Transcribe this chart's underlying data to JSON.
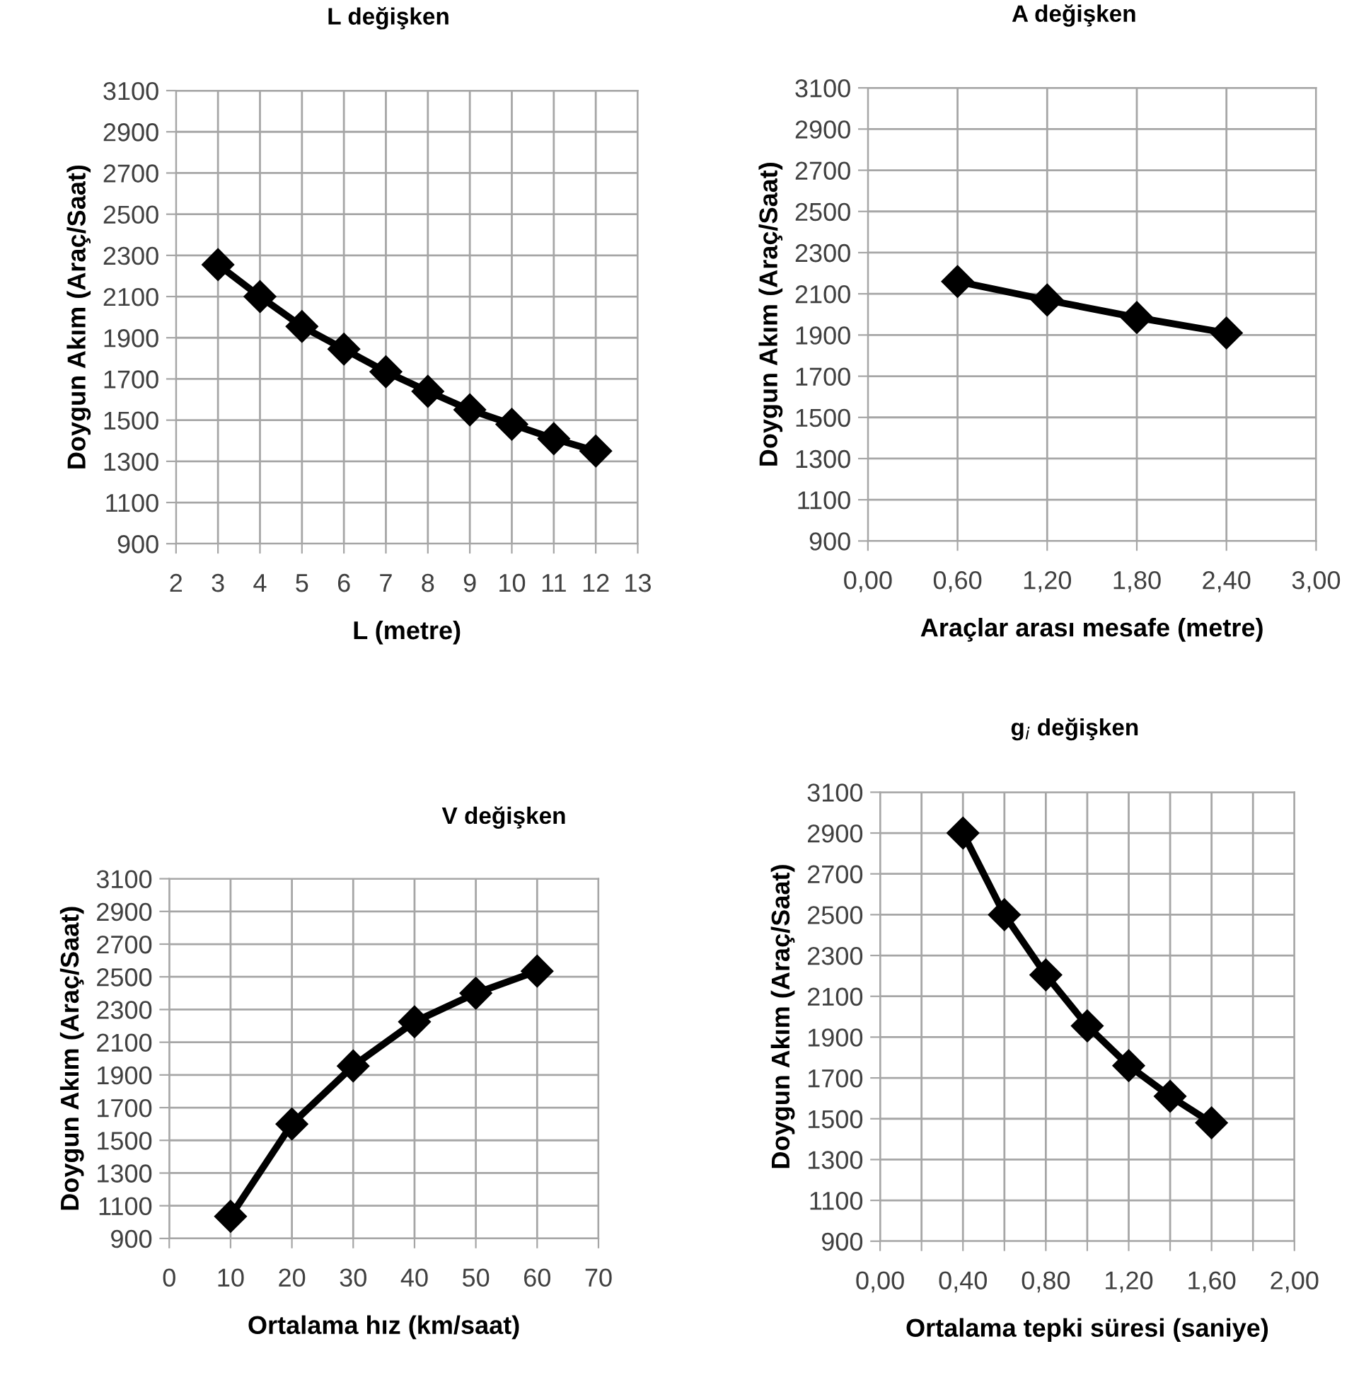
{
  "chart_data": [
    {
      "type": "line",
      "title": "L değişken",
      "xlabel": "L (metre)",
      "ylabel": "Doygun Akım (Araç/Saat)",
      "x": [
        3,
        4,
        5,
        6,
        7,
        8,
        9,
        10,
        11,
        12
      ],
      "series": [
        {
          "color": "#000000",
          "values": [
            2255,
            2100,
            1955,
            1845,
            1735,
            1640,
            1550,
            1480,
            1410,
            1350
          ]
        }
      ],
      "xlim": [
        2,
        13
      ],
      "xticks": [
        2,
        3,
        4,
        5,
        6,
        7,
        8,
        9,
        10,
        11,
        12,
        13
      ],
      "ylim": [
        900,
        3100
      ],
      "yticks": [
        900,
        1100,
        1300,
        1500,
        1700,
        1900,
        2100,
        2300,
        2500,
        2700,
        2900,
        3100
      ],
      "grid": true,
      "marker": "diamond",
      "line_style": "solid"
    },
    {
      "type": "line",
      "title": "A değişken",
      "xlabel": "Araçlar arası mesafe (metre)",
      "ylabel": "Doygun Akım (Araç/Saat)",
      "x": [
        0.6,
        1.2,
        1.8,
        2.4
      ],
      "series": [
        {
          "color": "#000000",
          "values": [
            2160,
            2070,
            1985,
            1910
          ]
        }
      ],
      "xlim": [
        0,
        3
      ],
      "xticks": [
        {
          "value": 0,
          "label": "0,00"
        },
        {
          "value": 0.6,
          "label": "0,60"
        },
        {
          "value": 1.2,
          "label": "1,20"
        },
        {
          "value": 1.8,
          "label": "1,80"
        },
        {
          "value": 2.4,
          "label": "2,40"
        },
        {
          "value": 3,
          "label": "3,00"
        }
      ],
      "ylim": [
        900,
        3100
      ],
      "yticks": [
        900,
        1100,
        1300,
        1500,
        1700,
        1900,
        2100,
        2300,
        2500,
        2700,
        2900,
        3100
      ],
      "grid": true,
      "marker": "diamond",
      "line_style": "solid"
    },
    {
      "type": "line",
      "title": "V değişken",
      "xlabel": "Ortalama hız (km/saat)",
      "ylabel": "Doygun Akım (Araç/Saat)",
      "x": [
        10,
        20,
        30,
        40,
        50,
        60
      ],
      "series": [
        {
          "color": "#000000",
          "values": [
            1035,
            1600,
            1955,
            2225,
            2400,
            2535
          ]
        }
      ],
      "xlim": [
        0,
        70
      ],
      "xticks": [
        0,
        10,
        20,
        30,
        40,
        50,
        60,
        70
      ],
      "ylim": [
        900,
        3100
      ],
      "yticks": [
        900,
        1100,
        1300,
        1500,
        1700,
        1900,
        2100,
        2300,
        2500,
        2700,
        2900,
        3100
      ],
      "grid": true,
      "marker": "diamond",
      "line_style": "solid"
    },
    {
      "type": "line",
      "title": "g$_{i}$ değişken",
      "xlabel": "Ortalama tepki süresi (saniye)",
      "ylabel": "Doygun Akım (Araç/Saat)",
      "x": [
        0.4,
        0.6,
        0.8,
        1.0,
        1.2,
        1.4,
        1.6
      ],
      "series": [
        {
          "color": "#000000",
          "values": [
            2900,
            2500,
            2205,
            1955,
            1760,
            1610,
            1480
          ]
        }
      ],
      "xlim": [
        0,
        2
      ],
      "xticks": [
        {
          "value": 0,
          "label": "0,00"
        },
        {
          "value": 0.2,
          "label": null
        },
        {
          "value": 0.4,
          "label": "0,40"
        },
        {
          "value": 0.6,
          "label": null
        },
        {
          "value": 0.8,
          "label": "0,80"
        },
        {
          "value": 1.0,
          "label": null
        },
        {
          "value": 1.2,
          "label": "1,20"
        },
        {
          "value": 1.4,
          "label": null
        },
        {
          "value": 1.6,
          "label": "1,60"
        },
        {
          "value": 1.8,
          "label": null
        },
        {
          "value": 2,
          "label": "2,00"
        }
      ],
      "ylim": [
        900,
        3100
      ],
      "yticks": [
        900,
        1100,
        1300,
        1500,
        1700,
        1900,
        2100,
        2300,
        2500,
        2700,
        2900,
        3100
      ],
      "grid": true,
      "marker": "diamond",
      "line_style": "solid"
    }
  ]
}
